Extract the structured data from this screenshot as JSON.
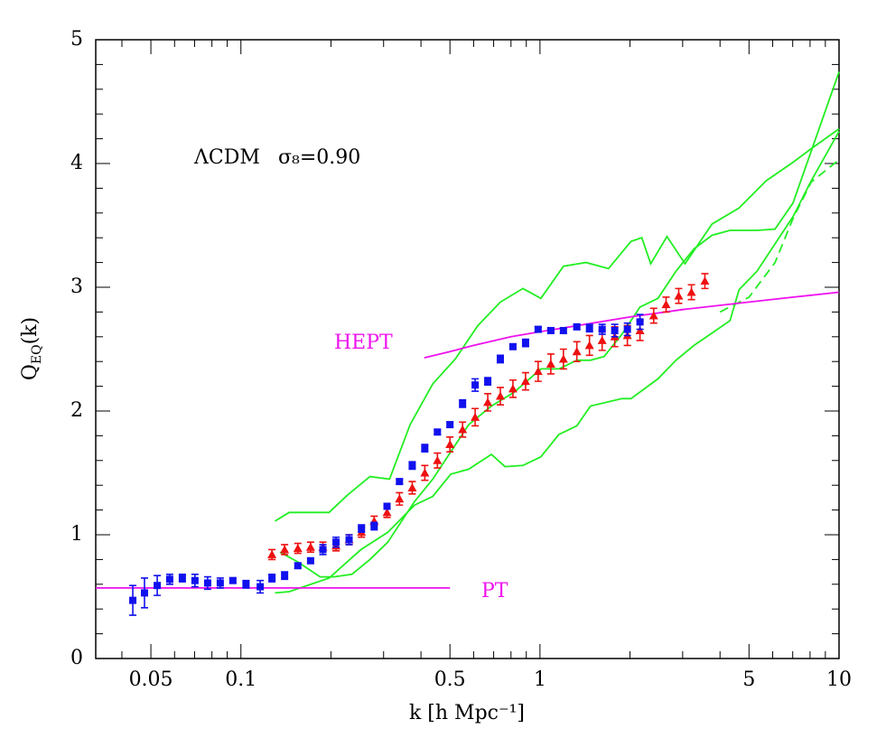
{
  "chart_data": {
    "type": "errorbar-lines",
    "xlabel": "k [h Mpc⁻¹]",
    "ylabel": {
      "main": "Q",
      "sub": "EQ",
      "tail": "(k)"
    },
    "annotations": [
      "ΛCDM",
      "σ₈=0.90",
      "HEPT",
      "PT"
    ],
    "xscale": "log",
    "xlim": [
      0.0327,
      10
    ],
    "ylim": [
      0,
      5
    ],
    "xticks": [
      0.05,
      0.1,
      0.5,
      1,
      5,
      10
    ],
    "xminorticks": [
      0.04,
      0.06,
      0.07,
      0.08,
      0.09,
      0.2,
      0.3,
      0.4,
      0.6,
      0.7,
      0.8,
      0.9,
      2,
      3,
      4,
      6,
      7,
      8,
      9
    ],
    "yticks": [
      0,
      1,
      2,
      3,
      4,
      5
    ],
    "yminorticks": [
      0.2,
      0.4,
      0.6,
      0.8,
      1.2,
      1.4,
      1.6,
      1.8,
      2.2,
      2.4,
      2.6,
      2.8,
      3.2,
      3.4,
      3.6,
      3.8,
      4.2,
      4.4,
      4.6,
      4.8
    ],
    "series": [
      {
        "kind": "line",
        "color": "#22ee22",
        "x": [
          0.13,
          0.145,
          0.172,
          0.197,
          0.227,
          0.27,
          0.314,
          0.368,
          0.438,
          0.521,
          0.62,
          0.737,
          0.877,
          1.007,
          1.198,
          1.425,
          1.694,
          2.014,
          2.19,
          2.346,
          2.659,
          3.055,
          3.76,
          4.63,
          5.7,
          7.02,
          8.07,
          10
        ],
        "values": [
          1.11,
          1.18,
          1.18,
          1.18,
          1.32,
          1.47,
          1.45,
          1.89,
          2.22,
          2.42,
          2.69,
          2.88,
          2.99,
          2.91,
          3.17,
          3.2,
          3.15,
          3.37,
          3.4,
          3.19,
          3.41,
          3.19,
          3.51,
          3.64,
          3.86,
          4.01,
          4.12,
          4.28
        ]
      },
      {
        "kind": "line",
        "color": "#22ee22",
        "x": [
          0.135,
          0.155,
          0.184,
          0.204,
          0.235,
          0.27,
          0.31,
          0.381,
          0.438,
          0.503,
          0.578,
          0.688,
          0.818,
          1.007,
          1.157,
          1.328,
          1.475,
          1.637,
          1.879,
          2.16,
          2.481,
          2.851,
          3.273,
          3.76,
          4.321,
          5.318,
          6.109,
          7.015,
          10
        ],
        "values": [
          0.86,
          0.78,
          0.66,
          0.66,
          0.68,
          0.8,
          0.94,
          1.27,
          1.45,
          1.67,
          1.89,
          2.04,
          2.15,
          2.34,
          2.34,
          2.41,
          2.41,
          2.44,
          2.62,
          2.84,
          2.91,
          3.13,
          3.31,
          3.42,
          3.46,
          3.46,
          3.47,
          3.68,
          4.74
        ]
      },
      {
        "kind": "line",
        "color": "#22ee22",
        "x": [
          0.13,
          0.145,
          0.197,
          0.252,
          0.31,
          0.381,
          0.438,
          0.503,
          0.578,
          0.688,
          0.764,
          0.877,
          1.007,
          1.157,
          1.328,
          1.475,
          1.879,
          2.014,
          2.481,
          2.851,
          3.273,
          3.76,
          4.321,
          4.63,
          5.318,
          6.109,
          7.015,
          8.07,
          10
        ],
        "values": [
          0.53,
          0.54,
          0.65,
          0.88,
          1.02,
          1.24,
          1.31,
          1.49,
          1.53,
          1.65,
          1.55,
          1.56,
          1.63,
          1.81,
          1.88,
          2.04,
          2.1,
          2.1,
          2.26,
          2.41,
          2.53,
          2.63,
          2.73,
          2.98,
          3.13,
          3.35,
          3.57,
          3.86,
          4.26
        ]
      },
      {
        "kind": "line",
        "color": "#22ee22",
        "dash": true,
        "x": [
          4.0,
          5.0,
          6.11,
          7.0,
          8.07,
          10
        ],
        "values": [
          2.8,
          2.92,
          3.2,
          3.55,
          3.85,
          4.03
        ]
      },
      {
        "kind": "line",
        "color": "#ee11ee",
        "x": [
          0.41,
          0.5,
          0.6,
          0.8,
          1,
          1.5,
          2,
          3,
          5,
          7,
          10
        ],
        "values": [
          2.43,
          2.48,
          2.53,
          2.6,
          2.64,
          2.71,
          2.76,
          2.82,
          2.88,
          2.92,
          2.96
        ]
      },
      {
        "kind": "line",
        "color": "#ee11ee",
        "x": [
          0.0327,
          0.5
        ],
        "values": [
          0.57,
          0.57
        ]
      },
      {
        "kind": "points",
        "marker": "triangle",
        "color": "#ee1111",
        "x": [
          0.127,
          0.14,
          0.155,
          0.171,
          0.188,
          0.208,
          0.23,
          0.253,
          0.279,
          0.308,
          0.339,
          0.374,
          0.412,
          0.454,
          0.5,
          0.551,
          0.607,
          0.669,
          0.737,
          0.812,
          0.895,
          0.986,
          1.087,
          1.198,
          1.328,
          1.464,
          1.614,
          1.778,
          1.96,
          2.16,
          2.4,
          2.64,
          2.91,
          3.21,
          3.56
        ],
        "values": [
          0.84,
          0.88,
          0.89,
          0.9,
          0.9,
          0.91,
          0.96,
          1.02,
          1.11,
          1.18,
          1.29,
          1.38,
          1.5,
          1.6,
          1.73,
          1.85,
          1.95,
          2.07,
          2.12,
          2.18,
          2.24,
          2.32,
          2.38,
          2.42,
          2.48,
          2.53,
          2.57,
          2.6,
          2.61,
          2.65,
          2.77,
          2.86,
          2.93,
          2.96,
          3.05
        ],
        "errors": [
          0.04,
          0.04,
          0.04,
          0.04,
          0.04,
          0.04,
          0.04,
          0.04,
          0.04,
          0.04,
          0.05,
          0.05,
          0.06,
          0.06,
          0.06,
          0.06,
          0.07,
          0.07,
          0.07,
          0.07,
          0.07,
          0.08,
          0.08,
          0.08,
          0.08,
          0.08,
          0.08,
          0.08,
          0.08,
          0.08,
          0.06,
          0.06,
          0.06,
          0.06,
          0.06
        ]
      },
      {
        "kind": "points",
        "marker": "square",
        "color": "#1111ee",
        "x": [
          0.0435,
          0.0476,
          0.0525,
          0.0578,
          0.0637,
          0.0702,
          0.0774,
          0.0853,
          0.094,
          0.104,
          0.116,
          0.127,
          0.14,
          0.155,
          0.171,
          0.188,
          0.208,
          0.23,
          0.253,
          0.279,
          0.308,
          0.339,
          0.374,
          0.412,
          0.454,
          0.5,
          0.551,
          0.607,
          0.669,
          0.737,
          0.812,
          0.895,
          0.986,
          1.087,
          1.198,
          1.328,
          1.464,
          1.614,
          1.778,
          1.96,
          2.16
        ],
        "values": [
          0.47,
          0.53,
          0.59,
          0.64,
          0.65,
          0.63,
          0.61,
          0.61,
          0.63,
          0.6,
          0.58,
          0.65,
          0.67,
          0.75,
          0.79,
          0.88,
          0.94,
          0.96,
          1.05,
          1.07,
          1.23,
          1.43,
          1.56,
          1.7,
          1.83,
          1.89,
          2.06,
          2.21,
          2.24,
          2.42,
          2.52,
          2.55,
          2.66,
          2.65,
          2.65,
          2.68,
          2.67,
          2.66,
          2.65,
          2.66,
          2.72
        ],
        "errors": [
          0.12,
          0.12,
          0.08,
          0.04,
          0.03,
          0.05,
          0.05,
          0.04,
          0.02,
          0.03,
          0.05,
          0.03,
          0.03,
          0.02,
          0.02,
          0.04,
          0.04,
          0.04,
          0.03,
          0.03,
          0.02,
          0.02,
          0.03,
          0.03,
          0.02,
          0.02,
          0.03,
          0.05,
          0.03,
          0.03,
          0.02,
          0.03,
          0.02,
          0.02,
          0.02,
          0.02,
          0.03,
          0.04,
          0.05,
          0.05,
          0.06
        ]
      }
    ]
  }
}
